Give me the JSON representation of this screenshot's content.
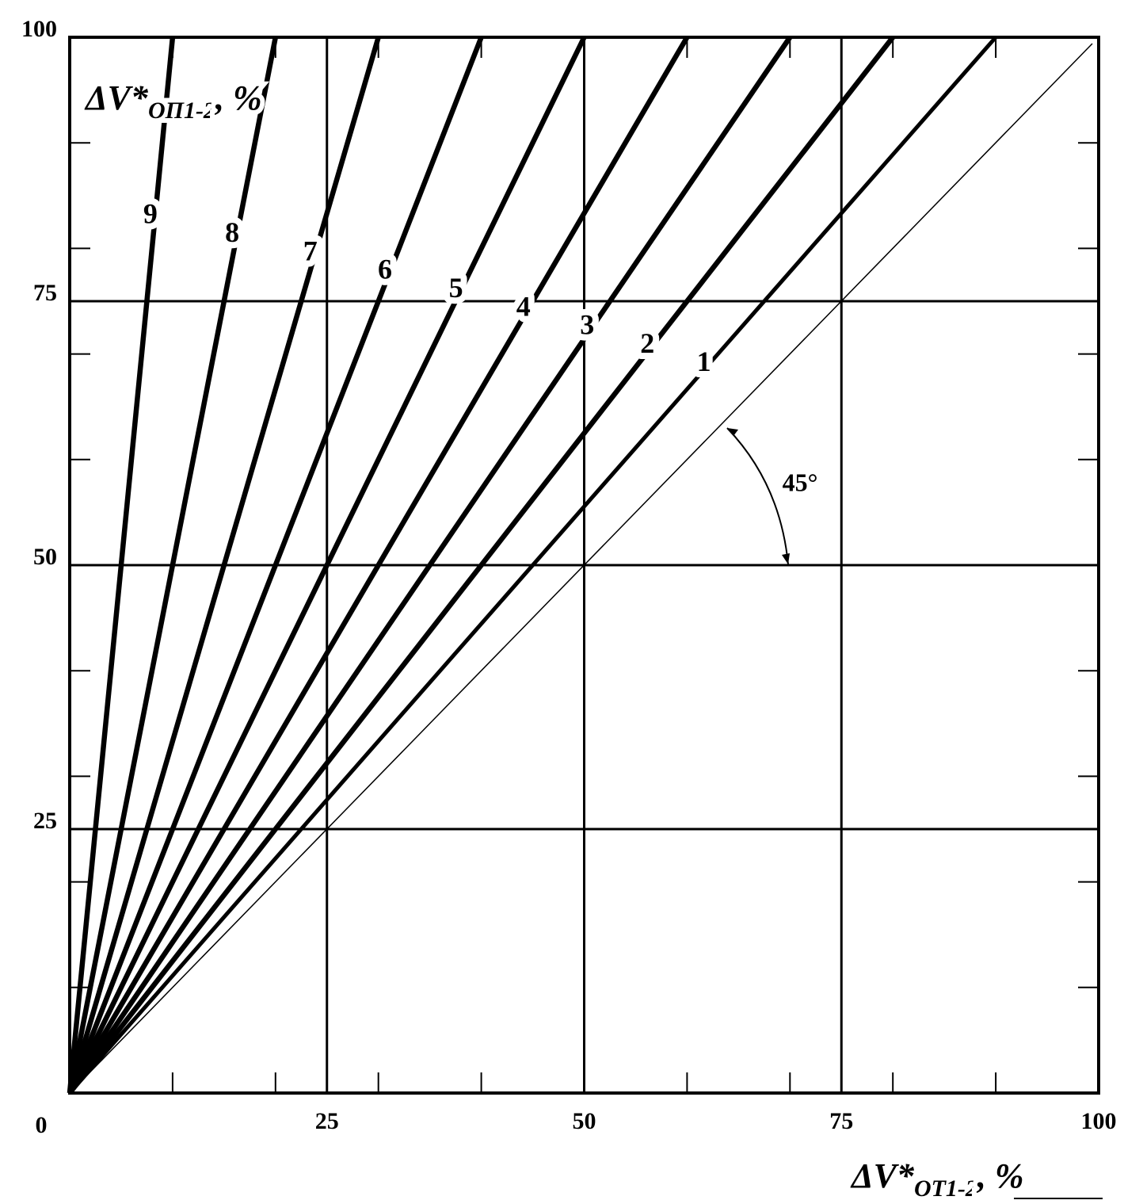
{
  "chart_data": {
    "type": "line",
    "x_label": {
      "text": "ΔV*",
      "subscript": "ОТ1-2",
      "suffix": ",  %"
    },
    "y_label": {
      "text": "ΔV*",
      "subscript": "ОП1-2",
      "suffix": ", %"
    },
    "origin_label": "0",
    "xlim": [
      0,
      100
    ],
    "ylim": [
      0,
      100
    ],
    "xticks": [
      25,
      50,
      75,
      100
    ],
    "yticks": [
      25,
      50,
      75,
      100
    ],
    "minor_ticks": [
      10,
      20,
      30,
      40,
      60,
      70,
      80,
      90
    ],
    "grid": true,
    "series": [
      {
        "name": "1",
        "color": "#000000",
        "x": [
          0,
          90
        ],
        "values": [
          0,
          100
        ]
      },
      {
        "name": "2",
        "color": "#000000",
        "x": [
          0,
          80
        ],
        "values": [
          0,
          100
        ]
      },
      {
        "name": "3",
        "color": "#000000",
        "x": [
          0,
          70
        ],
        "values": [
          0,
          100
        ]
      },
      {
        "name": "4",
        "color": "#000000",
        "x": [
          0,
          60
        ],
        "values": [
          0,
          100
        ]
      },
      {
        "name": "5",
        "color": "#000000",
        "x": [
          0,
          50
        ],
        "values": [
          0,
          100
        ]
      },
      {
        "name": "6",
        "color": "#000000",
        "x": [
          0,
          40
        ],
        "values": [
          0,
          100
        ]
      },
      {
        "name": "7",
        "color": "#000000",
        "x": [
          0,
          30
        ],
        "values": [
          0,
          100
        ]
      },
      {
        "name": "8",
        "color": "#000000",
        "x": [
          0,
          20
        ],
        "values": [
          0,
          100
        ]
      },
      {
        "name": "9",
        "color": "#000000",
        "x": [
          0,
          10
        ],
        "values": [
          0,
          100
        ]
      }
    ],
    "reference_line": {
      "x": [
        0,
        100
      ],
      "values": [
        0,
        100
      ],
      "annotation": "45°"
    }
  }
}
